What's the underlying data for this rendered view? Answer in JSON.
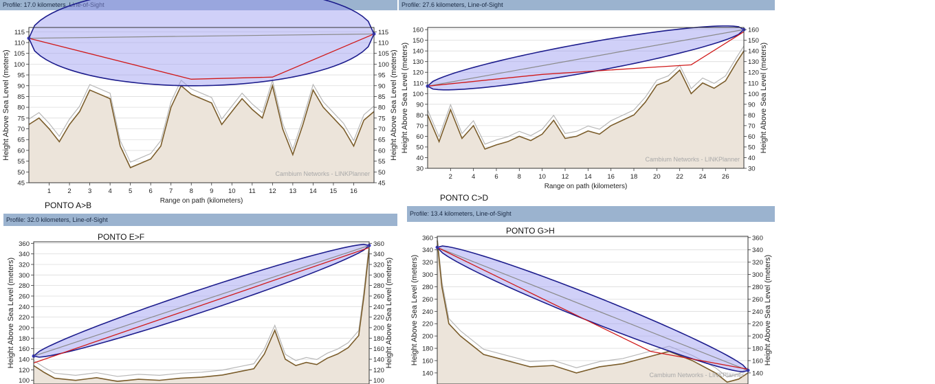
{
  "panels": [
    {
      "id": "ab",
      "profile_label": "Profile: 17.0 kilometers, Line-of-Sight",
      "caption": "PONTO A>B",
      "chart_data": {
        "type": "area",
        "xlabel": "Range on path (kilometers)",
        "ylabel": "Height Above Sea Level (meters)",
        "xlim": [
          0,
          17
        ],
        "ylim": [
          45,
          117
        ],
        "x_ticks": [
          1,
          2,
          3,
          4,
          5,
          6,
          7,
          8,
          9,
          10,
          11,
          12,
          13,
          14,
          15,
          16
        ],
        "y_ticks": [
          45,
          50,
          55,
          60,
          65,
          70,
          75,
          80,
          85,
          90,
          95,
          100,
          105,
          110,
          115
        ],
        "terrain": {
          "x": [
            0,
            0.5,
            1,
            1.5,
            2,
            2.5,
            3,
            3.5,
            4,
            4.5,
            5,
            5.5,
            6,
            6.5,
            7,
            7.5,
            8,
            8.5,
            9,
            9.5,
            10,
            10.5,
            11,
            11.5,
            12,
            12.5,
            13,
            13.5,
            14,
            14.5,
            15,
            15.5,
            16,
            16.5,
            17
          ],
          "y": [
            72,
            75,
            70,
            64,
            72,
            78,
            88,
            86,
            84,
            62,
            52,
            54,
            56,
            62,
            80,
            90,
            86,
            84,
            82,
            72,
            78,
            84,
            79,
            75,
            90,
            70,
            58,
            72,
            88,
            80,
            75,
            70,
            62,
            74,
            78
          ]
        },
        "los": {
          "x": [
            0,
            17
          ],
          "y": [
            112,
            114
          ]
        },
        "fresnel": {
          "center_x": [
            0,
            17
          ],
          "center_y": [
            112,
            114
          ],
          "half_height_max": 23
        },
        "refracted_path": {
          "x": [
            0,
            8,
            12,
            17
          ],
          "y": [
            112,
            93,
            94,
            114
          ]
        },
        "watermark": "Cambium Networks - LINKPlanner"
      }
    },
    {
      "id": "cd",
      "profile_label": "Profile: 27.6 kilometers, Line-of-Sight",
      "caption": "PONTO C>D",
      "chart_data": {
        "type": "area",
        "xlabel": "Range on path (kilometers)",
        "ylabel": "Height Above Sea Level (meters)",
        "xlim": [
          0,
          27.6
        ],
        "ylim": [
          30,
          162
        ],
        "x_ticks": [
          2,
          4,
          6,
          8,
          10,
          12,
          14,
          16,
          18,
          20,
          22,
          24,
          26
        ],
        "y_ticks": [
          30,
          40,
          50,
          60,
          70,
          80,
          90,
          100,
          110,
          120,
          130,
          140,
          150,
          160
        ],
        "terrain": {
          "x": [
            0,
            1,
            2,
            3,
            4,
            5,
            6,
            7,
            8,
            9,
            10,
            11,
            12,
            13,
            14,
            15,
            16,
            17,
            18,
            19,
            20,
            21,
            22,
            23,
            24,
            25,
            26,
            27,
            27.6
          ],
          "y": [
            80,
            55,
            85,
            58,
            70,
            48,
            52,
            55,
            60,
            56,
            62,
            75,
            58,
            60,
            65,
            62,
            70,
            75,
            80,
            92,
            108,
            112,
            122,
            100,
            110,
            105,
            112,
            130,
            140
          ]
        },
        "los": {
          "x": [
            0,
            27.6
          ],
          "y": [
            107,
            160
          ]
        },
        "fresnel": {
          "center_x": [
            0,
            27.6
          ],
          "center_y": [
            107,
            160
          ],
          "half_height_max": 14
        },
        "refracted_path": {
          "x": [
            0,
            10,
            20,
            23,
            27.6
          ],
          "y": [
            107,
            118,
            125,
            127,
            158
          ]
        },
        "watermark": "Cambium Networks - LINKPlanner"
      }
    },
    {
      "id": "ef",
      "profile_label": "Profile: 32.0 kilometers, Line-of-Sight",
      "caption": "PONTO E>F",
      "chart_data": {
        "type": "area",
        "xlabel": "",
        "ylabel": "Height Above Sea Level (meters)",
        "xlim": [
          0,
          32
        ],
        "ylim": [
          93,
          363
        ],
        "x_ticks": [],
        "y_ticks": [
          100,
          120,
          140,
          160,
          180,
          200,
          220,
          240,
          260,
          280,
          300,
          320,
          340,
          360
        ],
        "terrain": {
          "x": [
            0,
            1,
            2,
            4,
            6,
            8,
            10,
            12,
            14,
            16,
            18,
            20,
            21,
            22,
            23,
            24,
            25,
            26,
            27,
            28,
            29,
            30,
            31,
            31.5,
            32
          ],
          "y": [
            128,
            115,
            104,
            100,
            105,
            98,
            102,
            100,
            104,
            106,
            110,
            118,
            122,
            150,
            195,
            140,
            128,
            134,
            130,
            142,
            150,
            162,
            185,
            260,
            350
          ]
        },
        "los": {
          "x": [
            0,
            32
          ],
          "y": [
            146,
            356
          ]
        },
        "fresnel": {
          "center_x": [
            0,
            32
          ],
          "center_y": [
            146,
            356
          ],
          "half_height_max": 22
        },
        "refracted_path": {
          "x": [
            0,
            32
          ],
          "y": [
            133,
            352
          ]
        }
      }
    },
    {
      "id": "gh",
      "profile_label": "Profile: 13.4 kilometers, Line-of-Sight",
      "caption": "PONTO G>H",
      "chart_data": {
        "type": "area",
        "xlabel": "",
        "ylabel": "Height Above Sea Level (meters)",
        "xlim": [
          0,
          13.4
        ],
        "ylim": [
          122,
          362
        ],
        "x_ticks": [],
        "y_ticks": [
          140,
          160,
          180,
          200,
          220,
          240,
          260,
          280,
          300,
          320,
          340,
          360
        ],
        "terrain": {
          "x": [
            0,
            0.2,
            0.5,
            1,
            1.5,
            2,
            3,
            4,
            5,
            6,
            7,
            8,
            9,
            10,
            11,
            12,
            12.5,
            13,
            13.4
          ],
          "y": [
            355,
            280,
            220,
            200,
            185,
            170,
            160,
            150,
            152,
            140,
            150,
            155,
            165,
            175,
            160,
            140,
            125,
            130,
            140
          ]
        },
        "los": {
          "x": [
            0,
            13.4
          ],
          "y": [
            344,
            144
          ]
        },
        "fresnel": {
          "center_x": [
            0,
            13.4
          ],
          "center_y": [
            344,
            144
          ],
          "half_height_max": 22
        },
        "refracted_path": {
          "x": [
            0,
            9.2,
            13.4
          ],
          "y": [
            344,
            175,
            146
          ]
        },
        "watermark": "Cambium Networks - LINKPlanner"
      }
    }
  ]
}
